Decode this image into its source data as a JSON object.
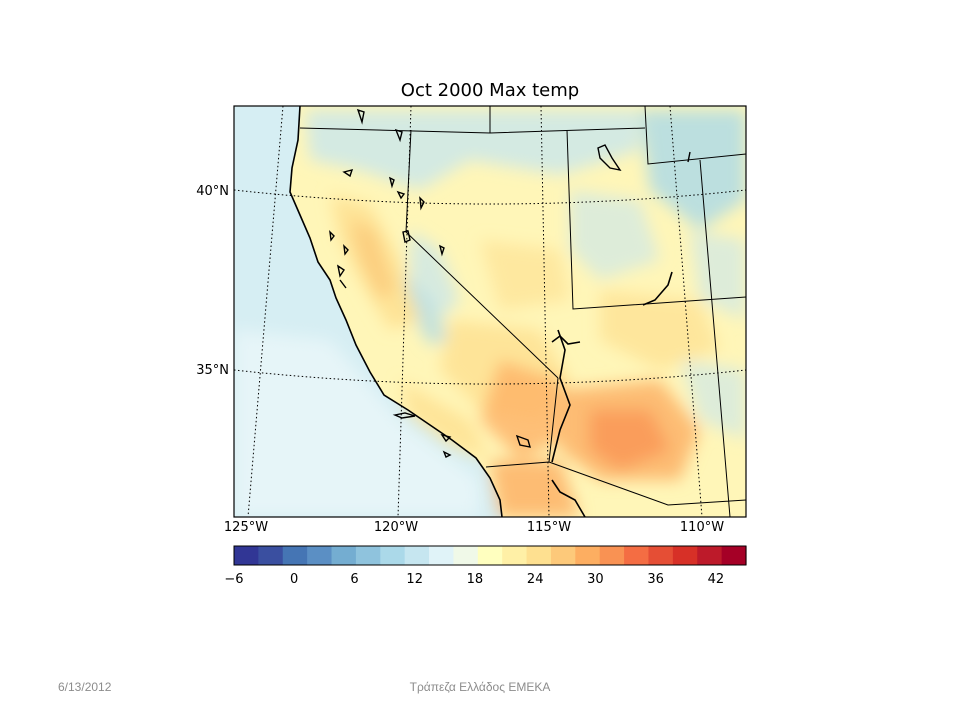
{
  "map": {
    "title": "Oct 2000 Max temp",
    "lat_labels": [
      "40°N",
      "35°N"
    ],
    "lon_labels": [
      "125°W",
      "120°W",
      "115°W",
      "110°W"
    ],
    "colorbar": {
      "min": -6,
      "max": 45,
      "step": 3,
      "tick_labels": [
        "−6",
        "0",
        "6",
        "12",
        "18",
        "24",
        "30",
        "36",
        "42"
      ],
      "tick_values": [
        -6,
        0,
        6,
        12,
        18,
        24,
        30,
        36,
        42
      ],
      "colors": [
        "#313695",
        "#3a4fa0",
        "#4575b4",
        "#5b8fc4",
        "#74add1",
        "#8fc3dd",
        "#abd9e9",
        "#c6e6f0",
        "#e0f3f8",
        "#f0f9e8",
        "#ffffbf",
        "#fff0a6",
        "#fee090",
        "#fdc97a",
        "#fdae61",
        "#f99253",
        "#f46d43",
        "#e54e35",
        "#d73027",
        "#bd1a2a",
        "#a50026"
      ],
      "ocean_color": "#d6eef3",
      "land_base_color": "#fff6b8"
    }
  },
  "footer": {
    "date": "6/13/2012",
    "text": "Τράπεζα Ελλάδος ΕΜΕΚΑ"
  }
}
